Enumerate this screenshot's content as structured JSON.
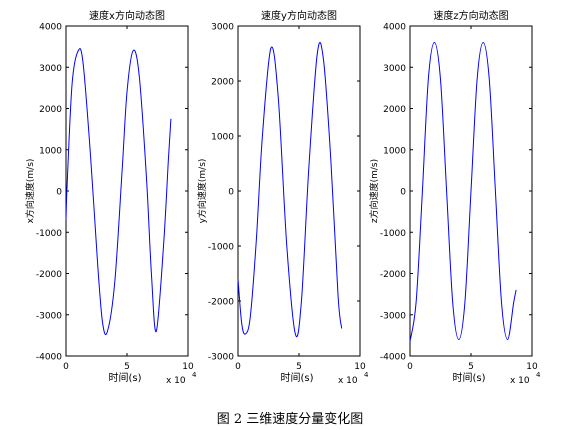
{
  "caption": "图 2 三维速度分量变化图",
  "line_color": "#0000ff",
  "chart_data": [
    {
      "type": "line",
      "title": "速度x方向动态图",
      "xlabel": "时间(s)",
      "ylabel": "x方向速度(m/s)",
      "xlim": [
        0,
        10
      ],
      "ylim": [
        -4000,
        4000
      ],
      "x_ticks": [
        0,
        5,
        10
      ],
      "y_ticks": [
        -4000,
        -3000,
        -2000,
        -1000,
        0,
        1000,
        2000,
        3000,
        4000
      ],
      "x_multiplier": "x 10",
      "x_exponent": "4",
      "series": [
        {
          "x": [
            0,
            0.1,
            0.5,
            1.0,
            1.4,
            2.0,
            2.6,
            3.0,
            3.4,
            4.0,
            4.6,
            5.0,
            5.5,
            6.0,
            6.6,
            7.0,
            7.4,
            8.0,
            8.4,
            8.6
          ],
          "y": [
            -700,
            200,
            2600,
            3400,
            3100,
            900,
            -1800,
            -3200,
            -3400,
            -2200,
            500,
            2400,
            3400,
            2800,
            300,
            -2000,
            -3400,
            -1300,
            800,
            1750
          ]
        }
      ]
    },
    {
      "type": "line",
      "title": "速度y方向动态图",
      "xlabel": "时间(s)",
      "ylabel": "y方向速度(m/s)",
      "xlim": [
        0,
        10
      ],
      "ylim": [
        -3000,
        3000
      ],
      "x_ticks": [
        0,
        5,
        10
      ],
      "y_ticks": [
        -3000,
        -2000,
        -1000,
        0,
        1000,
        2000,
        3000
      ],
      "x_multiplier": "x 10",
      "x_exponent": "4",
      "series": [
        {
          "x": [
            0,
            0.3,
            0.6,
            1.0,
            1.5,
            2.0,
            2.7,
            3.3,
            4.0,
            4.7,
            5.2,
            5.8,
            6.5,
            7.0,
            7.6,
            8.2,
            8.5
          ],
          "y": [
            -1600,
            -2400,
            -2600,
            -2300,
            -900,
            1000,
            2600,
            1700,
            -1000,
            -2600,
            -2000,
            400,
            2500,
            2400,
            600,
            -1900,
            -2500
          ]
        }
      ]
    },
    {
      "type": "line",
      "title": "速度z方向动态图",
      "xlabel": "时间(s)",
      "ylabel": "z方向速度(m/s)",
      "xlim": [
        0,
        10
      ],
      "ylim": [
        -4000,
        4000
      ],
      "x_ticks": [
        0,
        5,
        10
      ],
      "y_ticks": [
        -4000,
        -3000,
        -2000,
        -1000,
        0,
        1000,
        2000,
        3000,
        4000
      ],
      "x_multiplier": "x 10",
      "x_exponent": "4",
      "series": [
        {
          "x": [
            0,
            0.5,
            1.0,
            1.5,
            2.0,
            2.5,
            3.0,
            3.5,
            4.0,
            4.5,
            5.0,
            5.5,
            6.0,
            6.5,
            7.0,
            7.5,
            8.0,
            8.5,
            8.7
          ],
          "y": [
            -3650,
            -2700,
            -100,
            2700,
            3600,
            2700,
            0,
            -2700,
            -3600,
            -2700,
            0,
            2700,
            3600,
            2700,
            0,
            -2700,
            -3600,
            -2700,
            -2400
          ]
        }
      ]
    }
  ]
}
